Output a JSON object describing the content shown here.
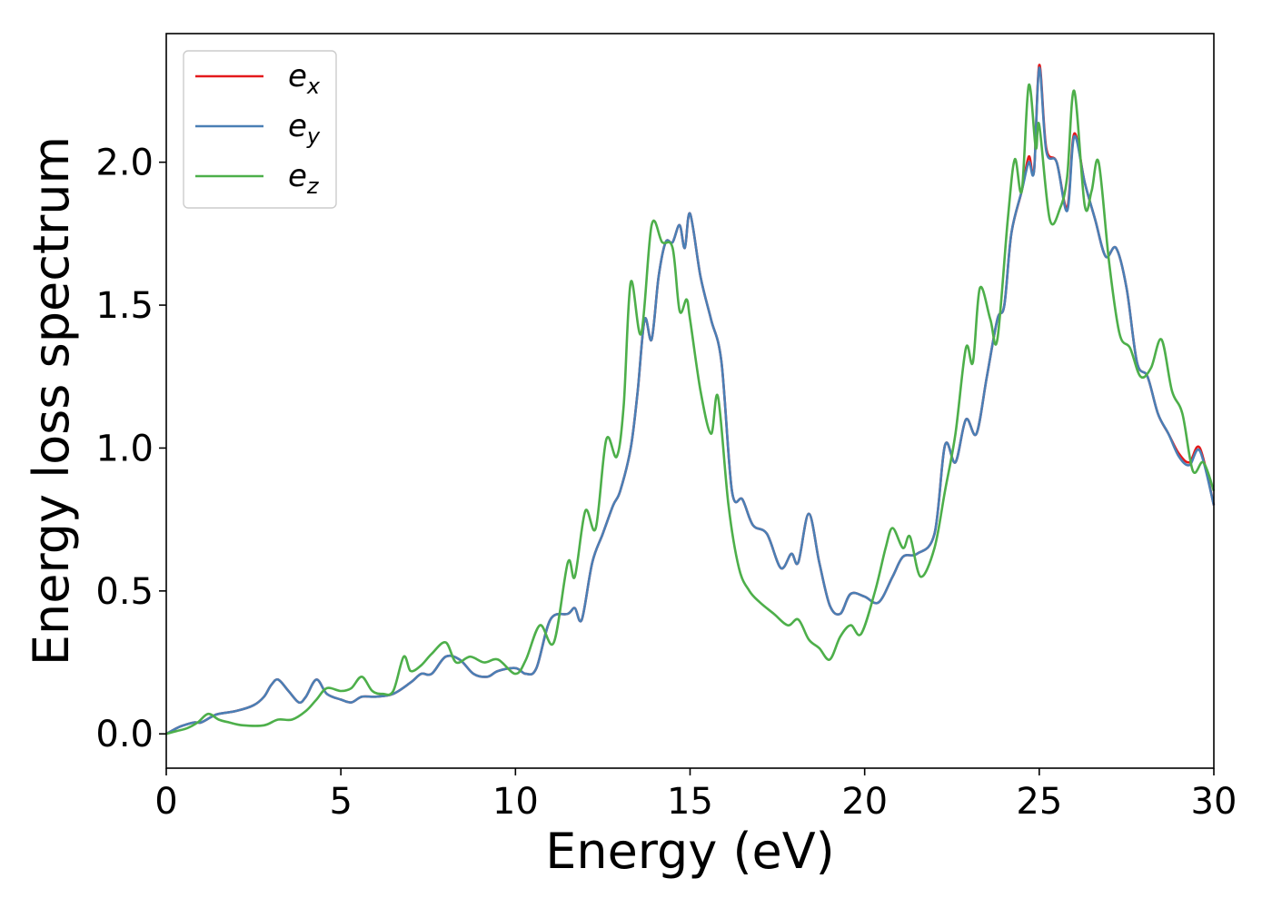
{
  "chart_data": {
    "type": "line",
    "title": "",
    "xlabel": "Energy (eV)",
    "ylabel": "Energy loss spectrum",
    "xlim": [
      0,
      30
    ],
    "ylim": [
      -0.12,
      2.45
    ],
    "xticks": [
      0,
      5,
      10,
      15,
      20,
      25,
      30
    ],
    "xtick_labels": [
      "0",
      "5",
      "10",
      "15",
      "20",
      "25",
      "30"
    ],
    "yticks": [
      0.0,
      0.5,
      1.0,
      1.5,
      2.0
    ],
    "ytick_labels": [
      "0.0",
      "0.5",
      "1.0",
      "1.5",
      "2.0"
    ],
    "grid": false,
    "legend_position": "top-left",
    "series": [
      {
        "name": "e_x",
        "label_base": "e",
        "label_sub": "x",
        "color": "#e41a1c",
        "points": [
          [
            0,
            0
          ],
          [
            0.3,
            0.02
          ],
          [
            0.5,
            0.03
          ],
          [
            0.8,
            0.04
          ],
          [
            1.0,
            0.04
          ],
          [
            1.3,
            0.06
          ],
          [
            1.5,
            0.07
          ],
          [
            2.0,
            0.08
          ],
          [
            2.5,
            0.1
          ],
          [
            2.8,
            0.13
          ],
          [
            3.0,
            0.17
          ],
          [
            3.2,
            0.19
          ],
          [
            3.5,
            0.15
          ],
          [
            3.8,
            0.11
          ],
          [
            4.0,
            0.13
          ],
          [
            4.3,
            0.19
          ],
          [
            4.6,
            0.14
          ],
          [
            5.0,
            0.12
          ],
          [
            5.3,
            0.11
          ],
          [
            5.6,
            0.13
          ],
          [
            6.0,
            0.13
          ],
          [
            6.5,
            0.14
          ],
          [
            7.0,
            0.18
          ],
          [
            7.3,
            0.21
          ],
          [
            7.6,
            0.21
          ],
          [
            8.0,
            0.27
          ],
          [
            8.4,
            0.26
          ],
          [
            8.8,
            0.21
          ],
          [
            9.2,
            0.2
          ],
          [
            9.5,
            0.22
          ],
          [
            10.0,
            0.23
          ],
          [
            10.3,
            0.21
          ],
          [
            10.6,
            0.23
          ],
          [
            11.0,
            0.4
          ],
          [
            11.5,
            0.42
          ],
          [
            11.7,
            0.44
          ],
          [
            11.9,
            0.4
          ],
          [
            12.2,
            0.6
          ],
          [
            12.5,
            0.7
          ],
          [
            12.8,
            0.8
          ],
          [
            13.0,
            0.85
          ],
          [
            13.3,
            1.0
          ],
          [
            13.5,
            1.2
          ],
          [
            13.7,
            1.45
          ],
          [
            13.9,
            1.38
          ],
          [
            14.1,
            1.6
          ],
          [
            14.3,
            1.72
          ],
          [
            14.5,
            1.72
          ],
          [
            14.7,
            1.78
          ],
          [
            14.85,
            1.7
          ],
          [
            15.0,
            1.82
          ],
          [
            15.3,
            1.6
          ],
          [
            15.6,
            1.45
          ],
          [
            15.9,
            1.3
          ],
          [
            16.2,
            0.85
          ],
          [
            16.5,
            0.82
          ],
          [
            16.8,
            0.73
          ],
          [
            17.2,
            0.7
          ],
          [
            17.6,
            0.58
          ],
          [
            17.9,
            0.63
          ],
          [
            18.1,
            0.6
          ],
          [
            18.4,
            0.77
          ],
          [
            18.7,
            0.6
          ],
          [
            19.0,
            0.45
          ],
          [
            19.3,
            0.42
          ],
          [
            19.6,
            0.49
          ],
          [
            20.0,
            0.48
          ],
          [
            20.4,
            0.46
          ],
          [
            20.8,
            0.55
          ],
          [
            21.1,
            0.62
          ],
          [
            21.5,
            0.63
          ],
          [
            22.0,
            0.7
          ],
          [
            22.3,
            1.01
          ],
          [
            22.6,
            0.95
          ],
          [
            22.9,
            1.1
          ],
          [
            23.2,
            1.05
          ],
          [
            23.5,
            1.25
          ],
          [
            23.8,
            1.45
          ],
          [
            24.0,
            1.5
          ],
          [
            24.2,
            1.75
          ],
          [
            24.5,
            1.9
          ],
          [
            24.7,
            2.02
          ],
          [
            24.85,
            1.97
          ],
          [
            25.0,
            2.34
          ],
          [
            25.2,
            2.05
          ],
          [
            25.5,
            2.0
          ],
          [
            25.8,
            1.84
          ],
          [
            26.0,
            2.1
          ],
          [
            26.3,
            1.93
          ],
          [
            26.6,
            1.8
          ],
          [
            26.9,
            1.67
          ],
          [
            27.2,
            1.7
          ],
          [
            27.5,
            1.56
          ],
          [
            27.8,
            1.3
          ],
          [
            28.1,
            1.25
          ],
          [
            28.4,
            1.12
          ],
          [
            28.7,
            1.05
          ],
          [
            29.0,
            0.98
          ],
          [
            29.3,
            0.95
          ],
          [
            29.6,
            1.0
          ],
          [
            30.0,
            0.8
          ]
        ]
      },
      {
        "name": "e_y",
        "label_base": "e",
        "label_sub": "y",
        "color": "#4a7fb5",
        "points": [
          [
            0,
            0
          ],
          [
            0.3,
            0.02
          ],
          [
            0.5,
            0.03
          ],
          [
            0.8,
            0.04
          ],
          [
            1.0,
            0.04
          ],
          [
            1.3,
            0.06
          ],
          [
            1.5,
            0.07
          ],
          [
            2.0,
            0.08
          ],
          [
            2.5,
            0.1
          ],
          [
            2.8,
            0.13
          ],
          [
            3.0,
            0.17
          ],
          [
            3.2,
            0.19
          ],
          [
            3.5,
            0.15
          ],
          [
            3.8,
            0.11
          ],
          [
            4.0,
            0.13
          ],
          [
            4.3,
            0.19
          ],
          [
            4.6,
            0.14
          ],
          [
            5.0,
            0.12
          ],
          [
            5.3,
            0.11
          ],
          [
            5.6,
            0.13
          ],
          [
            6.0,
            0.13
          ],
          [
            6.5,
            0.14
          ],
          [
            7.0,
            0.18
          ],
          [
            7.3,
            0.21
          ],
          [
            7.6,
            0.21
          ],
          [
            8.0,
            0.27
          ],
          [
            8.4,
            0.26
          ],
          [
            8.8,
            0.21
          ],
          [
            9.2,
            0.2
          ],
          [
            9.5,
            0.22
          ],
          [
            10.0,
            0.23
          ],
          [
            10.3,
            0.21
          ],
          [
            10.6,
            0.23
          ],
          [
            11.0,
            0.4
          ],
          [
            11.5,
            0.42
          ],
          [
            11.7,
            0.44
          ],
          [
            11.9,
            0.4
          ],
          [
            12.2,
            0.6
          ],
          [
            12.5,
            0.7
          ],
          [
            12.8,
            0.8
          ],
          [
            13.0,
            0.85
          ],
          [
            13.3,
            1.0
          ],
          [
            13.5,
            1.2
          ],
          [
            13.7,
            1.45
          ],
          [
            13.9,
            1.38
          ],
          [
            14.1,
            1.6
          ],
          [
            14.3,
            1.72
          ],
          [
            14.5,
            1.72
          ],
          [
            14.7,
            1.78
          ],
          [
            14.85,
            1.7
          ],
          [
            15.0,
            1.82
          ],
          [
            15.3,
            1.6
          ],
          [
            15.6,
            1.45
          ],
          [
            15.9,
            1.3
          ],
          [
            16.2,
            0.85
          ],
          [
            16.5,
            0.82
          ],
          [
            16.8,
            0.73
          ],
          [
            17.2,
            0.7
          ],
          [
            17.6,
            0.58
          ],
          [
            17.9,
            0.63
          ],
          [
            18.1,
            0.6
          ],
          [
            18.4,
            0.77
          ],
          [
            18.7,
            0.6
          ],
          [
            19.0,
            0.45
          ],
          [
            19.3,
            0.42
          ],
          [
            19.6,
            0.49
          ],
          [
            20.0,
            0.48
          ],
          [
            20.4,
            0.46
          ],
          [
            20.8,
            0.55
          ],
          [
            21.1,
            0.62
          ],
          [
            21.5,
            0.63
          ],
          [
            22.0,
            0.7
          ],
          [
            22.3,
            1.01
          ],
          [
            22.6,
            0.95
          ],
          [
            22.9,
            1.1
          ],
          [
            23.2,
            1.05
          ],
          [
            23.5,
            1.25
          ],
          [
            23.8,
            1.45
          ],
          [
            24.0,
            1.5
          ],
          [
            24.2,
            1.75
          ],
          [
            24.5,
            1.9
          ],
          [
            24.7,
            2.0
          ],
          [
            24.85,
            1.97
          ],
          [
            25.0,
            2.33
          ],
          [
            25.2,
            2.04
          ],
          [
            25.5,
            2.0
          ],
          [
            25.8,
            1.83
          ],
          [
            26.0,
            2.09
          ],
          [
            26.3,
            1.93
          ],
          [
            26.6,
            1.8
          ],
          [
            26.9,
            1.67
          ],
          [
            27.2,
            1.7
          ],
          [
            27.5,
            1.56
          ],
          [
            27.8,
            1.3
          ],
          [
            28.1,
            1.25
          ],
          [
            28.4,
            1.12
          ],
          [
            28.7,
            1.05
          ],
          [
            29.0,
            0.97
          ],
          [
            29.3,
            0.94
          ],
          [
            29.6,
            0.99
          ],
          [
            30.0,
            0.8
          ]
        ]
      },
      {
        "name": "e_z",
        "label_base": "e",
        "label_sub": "z",
        "color": "#4daf4a",
        "points": [
          [
            0,
            0
          ],
          [
            0.3,
            0.01
          ],
          [
            0.6,
            0.02
          ],
          [
            0.9,
            0.04
          ],
          [
            1.2,
            0.07
          ],
          [
            1.5,
            0.05
          ],
          [
            1.8,
            0.04
          ],
          [
            2.2,
            0.03
          ],
          [
            2.8,
            0.03
          ],
          [
            3.2,
            0.05
          ],
          [
            3.6,
            0.05
          ],
          [
            4.0,
            0.08
          ],
          [
            4.3,
            0.12
          ],
          [
            4.6,
            0.16
          ],
          [
            5.0,
            0.15
          ],
          [
            5.3,
            0.16
          ],
          [
            5.6,
            0.2
          ],
          [
            5.9,
            0.15
          ],
          [
            6.2,
            0.14
          ],
          [
            6.5,
            0.15
          ],
          [
            6.8,
            0.27
          ],
          [
            7.0,
            0.22
          ],
          [
            7.3,
            0.24
          ],
          [
            7.6,
            0.28
          ],
          [
            8.0,
            0.32
          ],
          [
            8.3,
            0.25
          ],
          [
            8.7,
            0.27
          ],
          [
            9.1,
            0.25
          ],
          [
            9.5,
            0.26
          ],
          [
            10.0,
            0.21
          ],
          [
            10.3,
            0.26
          ],
          [
            10.7,
            0.38
          ],
          [
            11.1,
            0.32
          ],
          [
            11.5,
            0.6
          ],
          [
            11.7,
            0.55
          ],
          [
            12.0,
            0.78
          ],
          [
            12.3,
            0.72
          ],
          [
            12.6,
            1.03
          ],
          [
            12.9,
            0.97
          ],
          [
            13.1,
            1.15
          ],
          [
            13.3,
            1.58
          ],
          [
            13.6,
            1.4
          ],
          [
            13.9,
            1.78
          ],
          [
            14.2,
            1.72
          ],
          [
            14.5,
            1.7
          ],
          [
            14.7,
            1.48
          ],
          [
            14.9,
            1.52
          ],
          [
            15.0,
            1.45
          ],
          [
            15.3,
            1.2
          ],
          [
            15.6,
            1.05
          ],
          [
            15.8,
            1.18
          ],
          [
            16.1,
            0.8
          ],
          [
            16.4,
            0.58
          ],
          [
            16.7,
            0.5
          ],
          [
            17.0,
            0.46
          ],
          [
            17.4,
            0.42
          ],
          [
            17.8,
            0.38
          ],
          [
            18.1,
            0.4
          ],
          [
            18.4,
            0.33
          ],
          [
            18.7,
            0.3
          ],
          [
            19.0,
            0.26
          ],
          [
            19.3,
            0.34
          ],
          [
            19.6,
            0.38
          ],
          [
            19.9,
            0.35
          ],
          [
            20.3,
            0.5
          ],
          [
            20.6,
            0.65
          ],
          [
            20.8,
            0.72
          ],
          [
            21.1,
            0.65
          ],
          [
            21.3,
            0.69
          ],
          [
            21.6,
            0.55
          ],
          [
            22.0,
            0.65
          ],
          [
            22.3,
            0.85
          ],
          [
            22.6,
            1.05
          ],
          [
            22.9,
            1.35
          ],
          [
            23.1,
            1.3
          ],
          [
            23.3,
            1.56
          ],
          [
            23.6,
            1.45
          ],
          [
            23.8,
            1.38
          ],
          [
            24.1,
            1.8
          ],
          [
            24.3,
            2.01
          ],
          [
            24.5,
            1.9
          ],
          [
            24.7,
            2.27
          ],
          [
            24.9,
            2.05
          ],
          [
            25.0,
            2.13
          ],
          [
            25.3,
            1.8
          ],
          [
            25.6,
            1.84
          ],
          [
            25.8,
            1.95
          ],
          [
            26.0,
            2.25
          ],
          [
            26.3,
            1.85
          ],
          [
            26.5,
            1.9
          ],
          [
            26.7,
            2.0
          ],
          [
            27.0,
            1.65
          ],
          [
            27.3,
            1.4
          ],
          [
            27.6,
            1.35
          ],
          [
            27.9,
            1.25
          ],
          [
            28.2,
            1.28
          ],
          [
            28.5,
            1.38
          ],
          [
            28.8,
            1.2
          ],
          [
            29.1,
            1.12
          ],
          [
            29.4,
            0.92
          ],
          [
            29.7,
            0.95
          ],
          [
            30.0,
            0.85
          ]
        ]
      }
    ]
  }
}
